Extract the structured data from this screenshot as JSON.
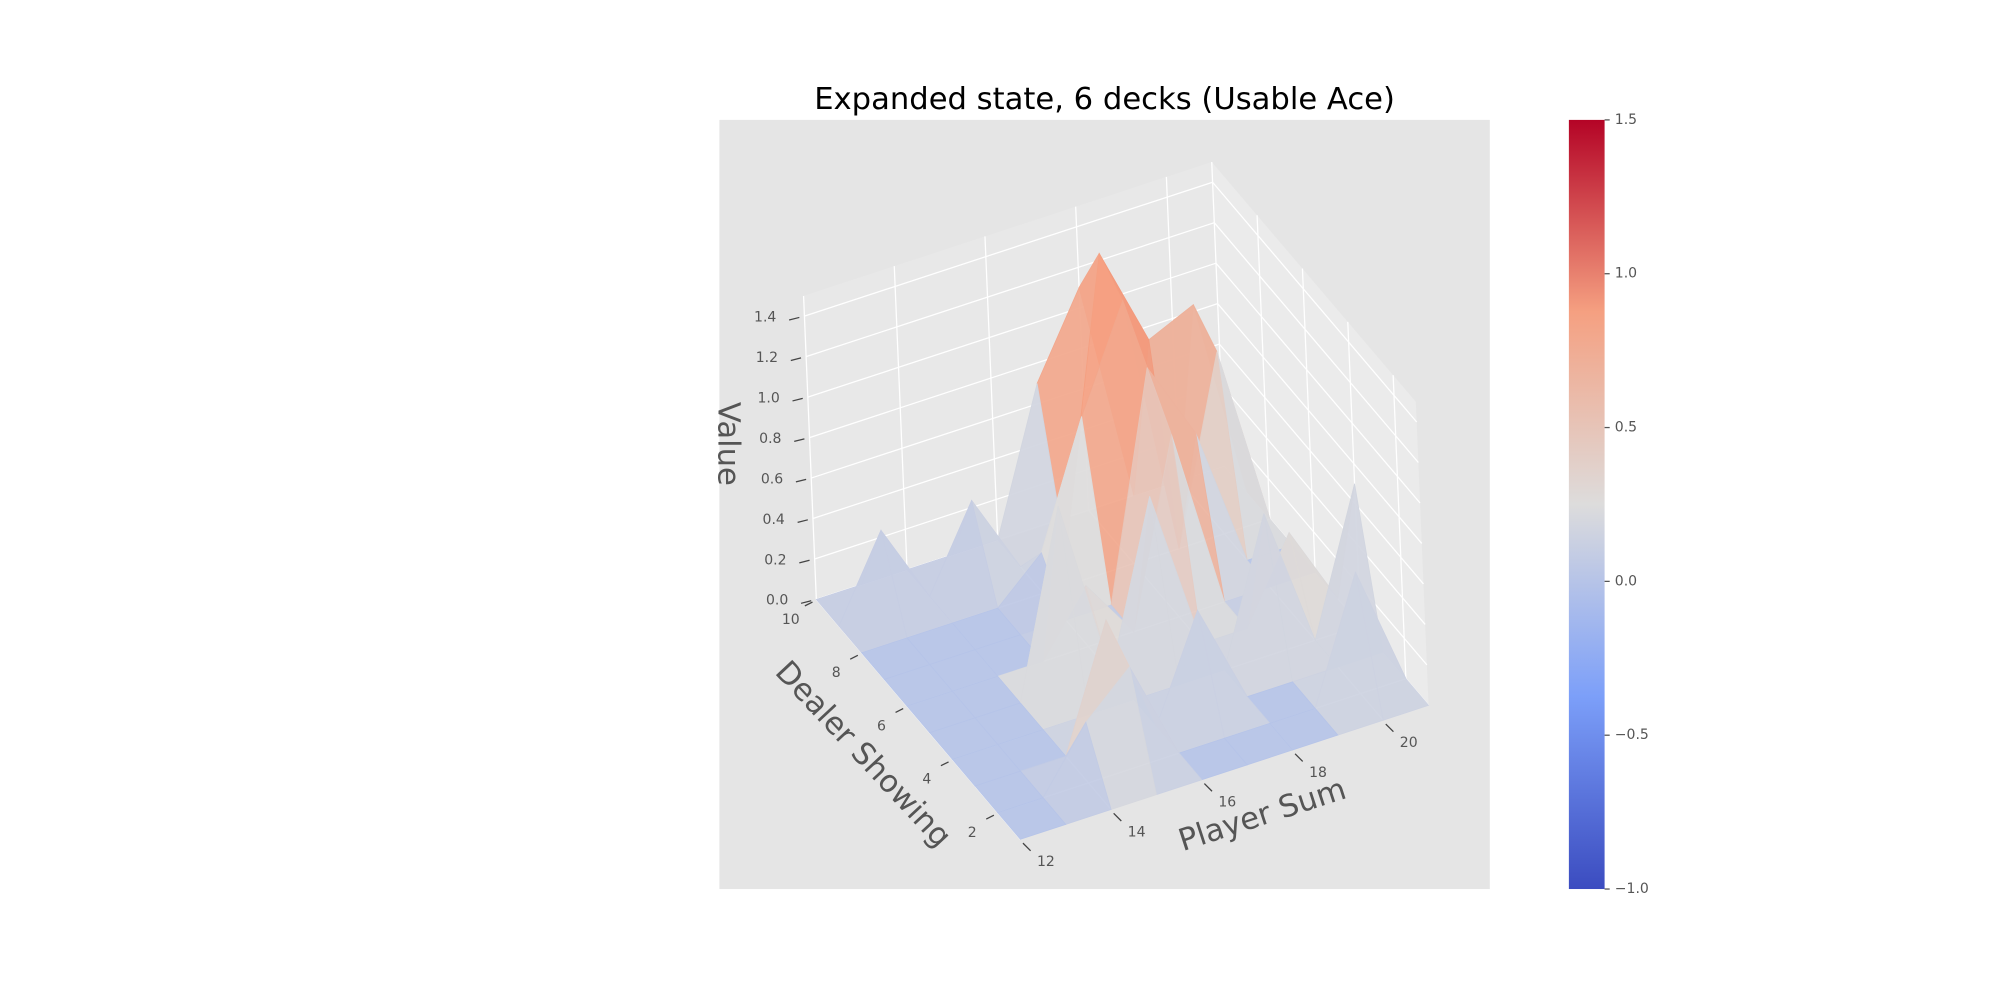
{
  "chart_data": {
    "type": "surface3d",
    "title": "Expanded state, 6 decks (Usable Ace)",
    "xlabel": "Player Sum",
    "ylabel": "Dealer Showing",
    "zlabel": "Value",
    "x": [
      12,
      13,
      14,
      15,
      16,
      17,
      18,
      19,
      20,
      21
    ],
    "y": [
      1,
      2,
      3,
      4,
      5,
      6,
      7,
      8,
      9,
      10
    ],
    "z": [
      [
        0,
        0,
        0,
        0,
        0,
        0,
        0,
        0,
        0,
        0
      ],
      [
        0,
        0,
        0.3,
        0.5,
        0,
        0,
        0,
        0,
        0.6,
        0
      ],
      [
        0,
        0,
        0,
        0.6,
        0,
        0.5,
        0,
        0,
        0,
        0
      ],
      [
        0,
        0,
        0,
        0,
        0,
        0,
        0,
        0.7,
        0,
        0.7
      ],
      [
        0,
        0,
        0,
        0.9,
        0,
        0.8,
        0,
        0,
        0.4,
        0
      ],
      [
        0,
        0,
        0,
        0,
        0.3,
        0,
        0.9,
        0,
        0,
        0
      ],
      [
        0,
        0,
        0,
        0,
        0,
        0,
        1.1,
        0.7,
        0,
        0
      ],
      [
        0,
        0,
        0,
        0,
        0.2,
        0.8,
        1.3,
        0,
        0.9,
        0
      ],
      [
        0,
        0.4,
        0,
        0.4,
        0,
        0,
        1.4,
        0.9,
        1.0,
        0
      ],
      [
        0,
        0,
        0,
        0,
        0,
        0.7,
        1.1,
        0,
        0,
        0
      ]
    ],
    "xlim": [
      12,
      21
    ],
    "ylim": [
      1,
      10
    ],
    "zlim": [
      0,
      1.5
    ],
    "xticks": [
      12,
      14,
      16,
      18,
      20
    ],
    "yticks": [
      2,
      4,
      6,
      8,
      10
    ],
    "zticks": [
      {
        "value": 0,
        "label": "0.0"
      },
      {
        "value": 0.2,
        "label": "0.2"
      },
      {
        "value": 0.4,
        "label": "0.4"
      },
      {
        "value": 0.6,
        "label": "0.6"
      },
      {
        "value": 0.8,
        "label": "0.8"
      },
      {
        "value": 1.0,
        "label": "1.0"
      },
      {
        "value": 1.2,
        "label": "1.2"
      },
      {
        "value": 1.4,
        "label": "1.4"
      }
    ],
    "colormap": "coolwarm",
    "clim": [
      -1,
      1.5
    ],
    "cticks": [
      {
        "value": -1,
        "label": "−1.0"
      },
      {
        "value": -0.5,
        "label": "−0.5"
      },
      {
        "value": 0,
        "label": "0.0"
      },
      {
        "value": 0.5,
        "label": "0.5"
      },
      {
        "value": 1.0,
        "label": "1.0"
      },
      {
        "value": 1.5,
        "label": "1.5"
      }
    ],
    "grid": true
  }
}
